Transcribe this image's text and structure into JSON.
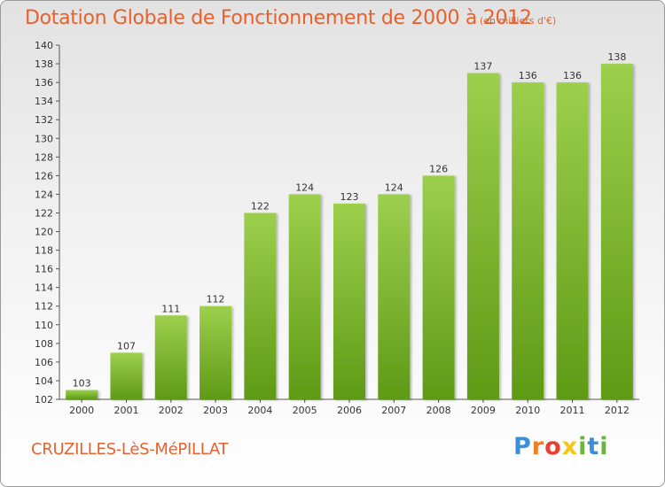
{
  "title": "Dotation Globale de Fonctionnement de 2000 à 2012",
  "unit_note": "(en milliers d'€)",
  "commune": "CRUZILLES-LèS-MéPILLAT",
  "logo": {
    "letters": [
      "P",
      "r",
      "o",
      "x",
      "i",
      "t",
      "i"
    ],
    "colors": [
      "#3a8fd8",
      "#f07e22",
      "#e84033",
      "#f5c518",
      "#6db33f",
      "#3a8fd8",
      "#6db33f"
    ]
  },
  "colors": {
    "text_accent": "#e8612c",
    "bar_top": "#9ccf4c",
    "bar_bottom": "#5f9a16"
  },
  "chart_data": {
    "type": "bar",
    "title": "Dotation Globale de Fonctionnement de 2000 à 2012",
    "subtitle": "(en milliers d'€)",
    "xlabel": "",
    "ylabel": "",
    "categories": [
      "2000",
      "2001",
      "2002",
      "2003",
      "2004",
      "2005",
      "2006",
      "2007",
      "2008",
      "2009",
      "2010",
      "2011",
      "2012"
    ],
    "values": [
      103,
      107,
      111,
      112,
      122,
      124,
      123,
      124,
      126,
      137,
      136,
      136,
      138
    ],
    "ylim": [
      102,
      140
    ],
    "ytick_step": 2,
    "grid": false,
    "legend": "none"
  }
}
